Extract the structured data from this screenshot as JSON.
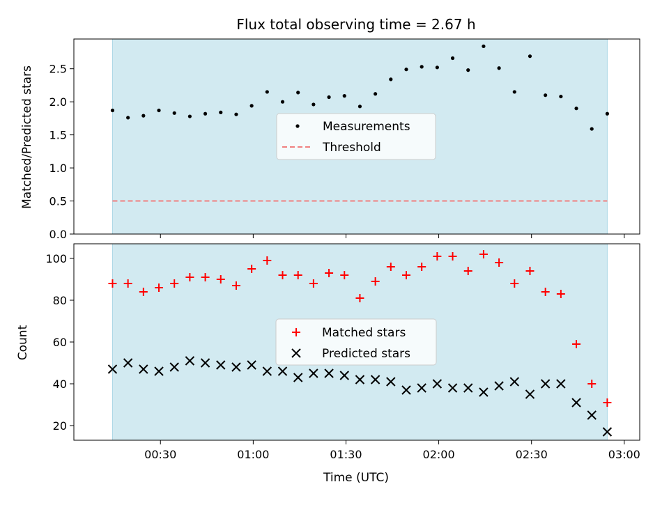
{
  "chart_data": {
    "title": "Flux total observing time = 2.67 h",
    "type": "scatter",
    "shading_color": "#add8e6",
    "xlabel": "Time (UTC)",
    "x_ticks": [
      "00:30",
      "01:00",
      "01:30",
      "02:00",
      "02:30",
      "03:00"
    ],
    "x_tick_minutes": [
      30,
      60,
      90,
      120,
      150,
      180
    ],
    "x_range_minutes": [
      2,
      185
    ],
    "shaded_range_minutes": [
      14.5,
      174.5
    ],
    "times_minutes": [
      14.5,
      19.5,
      24.5,
      29.5,
      34.5,
      39.5,
      44.5,
      49.5,
      54.5,
      59.5,
      64.5,
      69.5,
      74.5,
      79.5,
      84.5,
      89.5,
      94.5,
      99.5,
      104.5,
      109.5,
      114.5,
      119.5,
      124.5,
      129.5,
      134.5,
      139.5,
      144.5,
      149.5,
      154.5,
      159.5,
      164.5,
      169.5,
      174.5
    ],
    "top_panel": {
      "ylabel": "Matched/Predicted stars",
      "ylim": [
        0,
        2.95
      ],
      "yticks": [
        "0.0",
        "0.5",
        "1.0",
        "1.5",
        "2.0",
        "2.5"
      ],
      "ytick_values": [
        0,
        0.5,
        1.0,
        1.5,
        2.0,
        2.5
      ],
      "threshold": 0.5,
      "series": [
        {
          "name": "Measurements",
          "color": "#000000",
          "marker": "dot",
          "values": [
            1.87,
            1.76,
            1.79,
            1.87,
            1.83,
            1.78,
            1.82,
            1.84,
            1.81,
            1.94,
            2.15,
            2.0,
            2.14,
            1.96,
            2.07,
            2.09,
            1.93,
            2.12,
            2.34,
            2.49,
            2.53,
            2.52,
            2.66,
            2.48,
            2.84,
            2.51,
            2.15,
            2.69,
            2.1,
            2.08,
            1.9,
            1.59,
            1.82
          ]
        },
        {
          "name": "Threshold",
          "color": "#f08080",
          "marker": "dashed-line"
        }
      ]
    },
    "bottom_panel": {
      "ylabel": "Count",
      "ylim": [
        13,
        107
      ],
      "yticks": [
        "20",
        "40",
        "60",
        "80",
        "100"
      ],
      "ytick_values": [
        20,
        40,
        60,
        80,
        100
      ],
      "series": [
        {
          "name": "Matched stars",
          "color": "#ff0000",
          "marker": "plus",
          "values": [
            88,
            88,
            84,
            86,
            88,
            91,
            91,
            90,
            87,
            95,
            99,
            92,
            92,
            88,
            93,
            92,
            81,
            89,
            96,
            92,
            96,
            101,
            101,
            94,
            102,
            98,
            88,
            94,
            84,
            83,
            59,
            40,
            31
          ]
        },
        {
          "name": "Predicted stars",
          "color": "#000000",
          "marker": "x",
          "values": [
            47,
            50,
            47,
            46,
            48,
            51,
            50,
            49,
            48,
            49,
            46,
            46,
            43,
            45,
            45,
            44,
            42,
            42,
            41,
            37,
            38,
            40,
            38,
            38,
            36,
            39,
            41,
            35,
            40,
            40,
            31,
            25,
            17
          ]
        }
      ]
    }
  }
}
